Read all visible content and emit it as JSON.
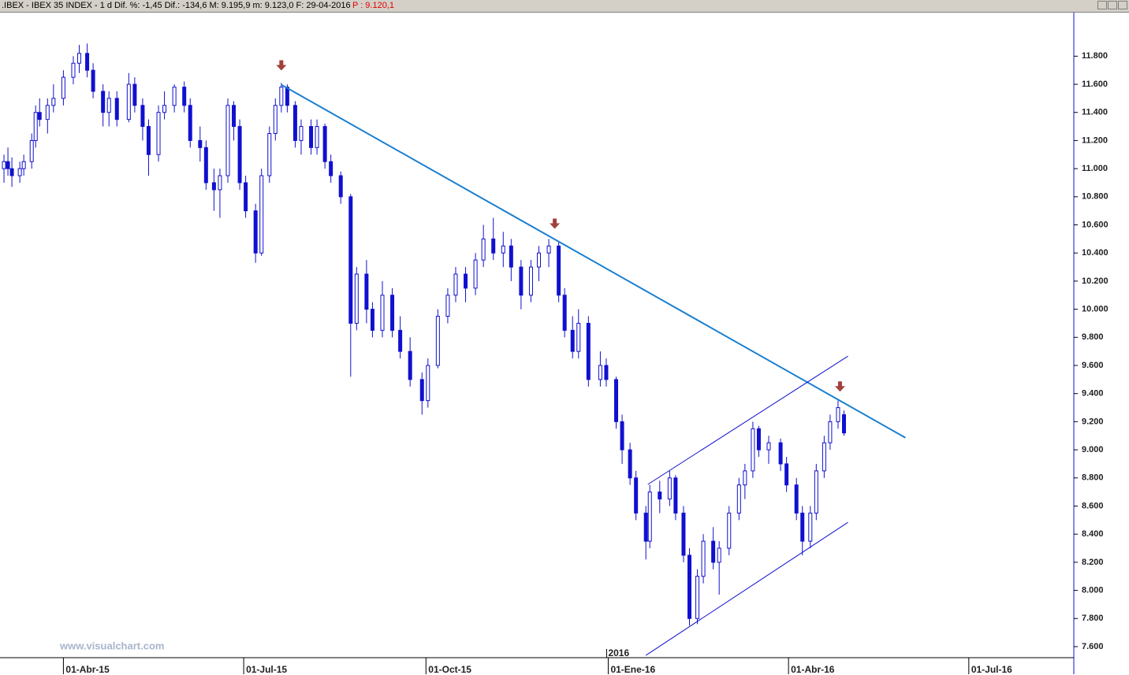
{
  "chart_data": {
    "type": "candlestick",
    "title": ".IBEX - IBEX 35 INDEX - 1 d Dif. %: -1,45 Dif.: -134,6 M: 9.195,9 m: 9.123,0 F: 29-04-2016",
    "price_label": "P : 9.120,1",
    "watermark": "www.visualchart.com",
    "year_label": {
      "x": "2016-01-01",
      "text": "2016"
    },
    "color": "#1010d0",
    "up_fill": "#ffffff",
    "xlim": [
      "2015-02-28",
      "2016-08-23"
    ],
    "ylim": [
      7527,
      12110
    ],
    "xticks": [
      {
        "value": "2015-04-01",
        "label": "01-Abr-15"
      },
      {
        "value": "2015-07-01",
        "label": "01-Jul-15"
      },
      {
        "value": "2015-10-01",
        "label": "01-Oct-15"
      },
      {
        "value": "2016-01-01",
        "label": "01-Ene-16"
      },
      {
        "value": "2016-04-01",
        "label": "01-Abr-16"
      },
      {
        "value": "2016-07-01",
        "label": "01-Jul-16"
      }
    ],
    "yticks": [
      {
        "value": 7600,
        "label": "7.600"
      },
      {
        "value": 7800,
        "label": "7.800"
      },
      {
        "value": 8000,
        "label": "8.000"
      },
      {
        "value": 8200,
        "label": "8.200"
      },
      {
        "value": 8400,
        "label": "8.400"
      },
      {
        "value": 8600,
        "label": "8.600"
      },
      {
        "value": 8800,
        "label": "8.800"
      },
      {
        "value": 9000,
        "label": "9.000"
      },
      {
        "value": 9200,
        "label": "9.200"
      },
      {
        "value": 9400,
        "label": "9.400"
      },
      {
        "value": 9600,
        "label": "9.600"
      },
      {
        "value": 9800,
        "label": "9.800"
      },
      {
        "value": 10000,
        "label": "10.000"
      },
      {
        "value": 10200,
        "label": "10.200"
      },
      {
        "value": 10400,
        "label": "10.400"
      },
      {
        "value": 10600,
        "label": "10.600"
      },
      {
        "value": 10800,
        "label": "10.800"
      },
      {
        "value": 11000,
        "label": "11.000"
      },
      {
        "value": 11200,
        "label": "11.200"
      },
      {
        "value": 11400,
        "label": "11.400"
      },
      {
        "value": 11600,
        "label": "11.600"
      },
      {
        "value": 11800,
        "label": "11.800"
      }
    ],
    "x": [
      "2015-03-02",
      "2015-03-04",
      "2015-03-06",
      "2015-03-10",
      "2015-03-12",
      "2015-03-16",
      "2015-03-18",
      "2015-03-20",
      "2015-03-24",
      "2015-03-27",
      "2015-04-01",
      "2015-04-06",
      "2015-04-09",
      "2015-04-13",
      "2015-04-16",
      "2015-04-21",
      "2015-04-24",
      "2015-04-28",
      "2015-05-04",
      "2015-05-07",
      "2015-05-11",
      "2015-05-14",
      "2015-05-19",
      "2015-05-22",
      "2015-05-27",
      "2015-06-01",
      "2015-06-04",
      "2015-06-09",
      "2015-06-12",
      "2015-06-16",
      "2015-06-19",
      "2015-06-23",
      "2015-06-26",
      "2015-06-29",
      "2015-07-02",
      "2015-07-07",
      "2015-07-10",
      "2015-07-14",
      "2015-07-17",
      "2015-07-20",
      "2015-07-23",
      "2015-07-27",
      "2015-07-30",
      "2015-08-04",
      "2015-08-07",
      "2015-08-11",
      "2015-08-14",
      "2015-08-19",
      "2015-08-24",
      "2015-08-27",
      "2015-09-01",
      "2015-09-04",
      "2015-09-09",
      "2015-09-14",
      "2015-09-18",
      "2015-09-23",
      "2015-09-29",
      "2015-10-02",
      "2015-10-07",
      "2015-10-12",
      "2015-10-16",
      "2015-10-21",
      "2015-10-26",
      "2015-10-30",
      "2015-11-04",
      "2015-11-09",
      "2015-11-13",
      "2015-11-18",
      "2015-11-23",
      "2015-11-27",
      "2015-12-02",
      "2015-12-07",
      "2015-12-10",
      "2015-12-14",
      "2015-12-17",
      "2015-12-22",
      "2015-12-28",
      "2015-12-31",
      "2016-01-05",
      "2016-01-08",
      "2016-01-12",
      "2016-01-15",
      "2016-01-20",
      "2016-01-22",
      "2016-01-27",
      "2016-02-01",
      "2016-02-04",
      "2016-02-08",
      "2016-02-11",
      "2016-02-15",
      "2016-02-18",
      "2016-02-23",
      "2016-02-26",
      "2016-03-02",
      "2016-03-07",
      "2016-03-10",
      "2016-03-14",
      "2016-03-17",
      "2016-03-22",
      "2016-03-28",
      "2016-03-31",
      "2016-04-05",
      "2016-04-08",
      "2016-04-12",
      "2016-04-15",
      "2016-04-19",
      "2016-04-22",
      "2016-04-26",
      "2016-04-29"
    ],
    "open": [
      11000,
      11050,
      11000,
      10950,
      11000,
      11050,
      11200,
      11400,
      11350,
      11450,
      11500,
      11650,
      11750,
      11820,
      11700,
      11550,
      11400,
      11500,
      11350,
      11600,
      11450,
      11300,
      11100,
      11400,
      11450,
      11580,
      11450,
      11200,
      11150,
      10900,
      10850,
      10950,
      11450,
      11300,
      10900,
      10700,
      10400,
      10950,
      11250,
      11450,
      11580,
      11450,
      11200,
      11300,
      11150,
      11300,
      11050,
      10950,
      10800,
      9900,
      10250,
      10000,
      9850,
      10100,
      9850,
      9700,
      9500,
      9350,
      9600,
      9950,
      10100,
      10250,
      10150,
      10350,
      10500,
      10400,
      10450,
      10300,
      10100,
      10300,
      10400,
      10450,
      10100,
      9850,
      9700,
      9900,
      9500,
      9600,
      9500,
      9200,
      9000,
      8800,
      8550,
      8350,
      8700,
      8650,
      8800,
      8550,
      8250,
      7800,
      8100,
      8350,
      8200,
      8300,
      8550,
      8750,
      8850,
      9150,
      9000,
      9050,
      8900,
      8750,
      8550,
      8350,
      8550,
      8850,
      9050,
      9200,
      9250
    ],
    "high": [
      11100,
      11150,
      11080,
      11050,
      11100,
      11250,
      11450,
      11500,
      11500,
      11600,
      11700,
      11800,
      11880,
      11890,
      11750,
      11600,
      11550,
      11550,
      11680,
      11650,
      11500,
      11350,
      11450,
      11550,
      11600,
      11620,
      11500,
      11300,
      11200,
      11000,
      11000,
      11500,
      11480,
      11350,
      10950,
      10750,
      11000,
      11300,
      11500,
      11610,
      11600,
      11480,
      11350,
      11350,
      11350,
      11320,
      11100,
      10980,
      10820,
      10300,
      10350,
      10050,
      10200,
      10150,
      9950,
      9800,
      9550,
      9650,
      10000,
      10150,
      10300,
      10300,
      10400,
      10600,
      10650,
      10550,
      10500,
      10350,
      10350,
      10450,
      10500,
      10480,
      10150,
      9950,
      10000,
      9950,
      9700,
      9650,
      9520,
      9250,
      9050,
      8850,
      8600,
      8750,
      8780,
      8850,
      8820,
      8600,
      8300,
      8150,
      8400,
      8450,
      8350,
      8600,
      8800,
      8900,
      9200,
      9170,
      9100,
      9080,
      8950,
      8800,
      8600,
      8600,
      8900,
      9100,
      9250,
      9350,
      9280
    ],
    "low": [
      10900,
      10950,
      10870,
      10900,
      10950,
      11000,
      11150,
      11300,
      11250,
      11400,
      11450,
      11600,
      11680,
      11650,
      11500,
      11300,
      11300,
      11300,
      11330,
      11400,
      11200,
      10950,
      11050,
      11350,
      11400,
      11400,
      11150,
      11050,
      10850,
      10700,
      10650,
      10900,
      11200,
      10850,
      10650,
      10330,
      10380,
      10900,
      11200,
      11400,
      11400,
      11150,
      11100,
      11100,
      11100,
      11000,
      10900,
      10750,
      9520,
      9850,
      9900,
      9800,
      9800,
      9800,
      9650,
      9450,
      9250,
      9300,
      9580,
      9900,
      10050,
      10050,
      10100,
      10300,
      10350,
      10300,
      10200,
      10000,
      10050,
      10200,
      10300,
      10050,
      9800,
      9650,
      9650,
      9450,
      9450,
      9450,
      9150,
      8900,
      8750,
      8500,
      8220,
      8300,
      8550,
      8600,
      8500,
      8200,
      7750,
      7760,
      8050,
      8150,
      7970,
      8250,
      8500,
      8650,
      8800,
      8950,
      8900,
      8850,
      8700,
      8500,
      8250,
      8300,
      8500,
      8800,
      9000,
      9150,
      9100
    ],
    "close": [
      11050,
      11000,
      10950,
      11000,
      11050,
      11200,
      11400,
      11350,
      11450,
      11500,
      11650,
      11750,
      11820,
      11700,
      11550,
      11400,
      11500,
      11350,
      11600,
      11450,
      11300,
      11100,
      11400,
      11450,
      11580,
      11450,
      11200,
      11150,
      10900,
      10850,
      10950,
      11450,
      11300,
      10900,
      10700,
      10400,
      10950,
      11250,
      11450,
      11580,
      11450,
      11200,
      11300,
      11150,
      11300,
      11050,
      10950,
      10800,
      9900,
      10250,
      10000,
      9850,
      10100,
      9850,
      9700,
      9500,
      9350,
      9600,
      9950,
      10100,
      10250,
      10150,
      10350,
      10500,
      10400,
      10450,
      10300,
      10100,
      10300,
      10400,
      10450,
      10100,
      9850,
      9700,
      9900,
      9500,
      9600,
      9500,
      9200,
      9000,
      8800,
      8550,
      8350,
      8700,
      8650,
      8800,
      8550,
      8250,
      7800,
      8100,
      8350,
      8200,
      8300,
      8550,
      8750,
      8850,
      9150,
      9000,
      9050,
      8900,
      8750,
      8550,
      8350,
      8550,
      8850,
      9050,
      9200,
      9300,
      9120
    ],
    "trendlines": [
      {
        "x": [
          "2015-07-20",
          "2016-05-30"
        ],
        "y": [
          11597,
          9086
        ],
        "color": "#1a7fd0",
        "width": 2
      },
      {
        "x": [
          "2016-01-21",
          "2016-05-01"
        ],
        "y": [
          8754,
          9666
        ],
        "color": "#1010d0",
        "width": 1
      },
      {
        "x": [
          "2016-01-20",
          "2016-05-01"
        ],
        "y": [
          7538,
          8484
        ],
        "color": "#1010d0",
        "width": 1
      }
    ],
    "markers": {
      "x": [
        "2015-07-20",
        "2015-12-05",
        "2016-04-27"
      ],
      "y": [
        11732,
        10606,
        9447
      ],
      "color": "#a0413c"
    }
  }
}
